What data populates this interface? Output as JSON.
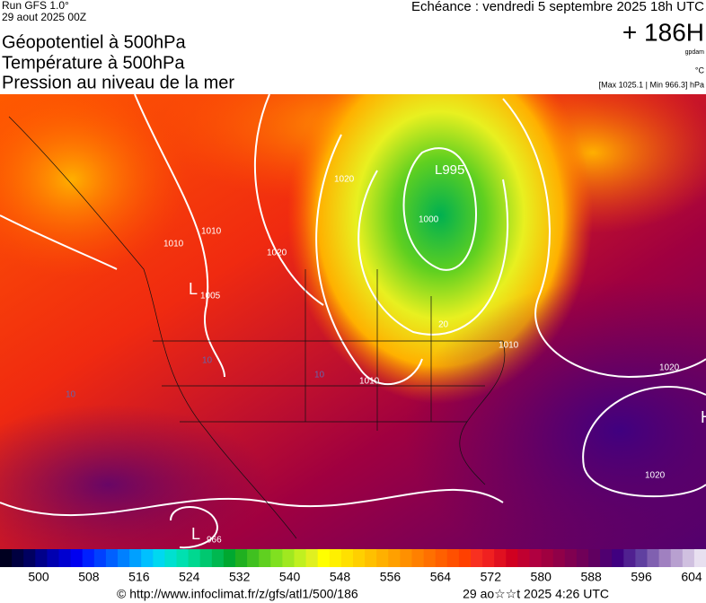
{
  "header": {
    "run": "Run GFS 1.0°",
    "run_date": "29 aout 2025 00Z",
    "valid": "Echéance : vendredi 5 septembre 2025 18h UTC",
    "title_lines": [
      "Géopotentiel à 500hPa",
      "Température à 500hPa",
      "Pression au niveau de la mer"
    ],
    "lead": "+ 186H",
    "unit_geo": "gpdam",
    "unit_temp": "°C",
    "pressure_range": "[Max 1025.1 | Min 966.3] hPa"
  },
  "map": {
    "labels": [
      "L995",
      "1000",
      "1005",
      "L",
      "1010",
      "1010",
      "1010",
      "1020",
      "1020",
      "1020",
      "1020",
      "966",
      "L",
      "H",
      "10",
      "10",
      "10",
      "20",
      "1010"
    ]
  },
  "colorbar": {
    "labels": [
      500,
      508,
      516,
      524,
      532,
      540,
      548,
      556,
      564,
      572,
      580,
      588,
      596,
      604
    ],
    "colors": [
      "#000020",
      "#000040",
      "#000060",
      "#00008a",
      "#0000b0",
      "#0000d0",
      "#0000f0",
      "#0020ff",
      "#0040ff",
      "#0060ff",
      "#0080ff",
      "#00a0ff",
      "#00c0ff",
      "#00d8f0",
      "#00e0d0",
      "#00e0b0",
      "#00d890",
      "#00c870",
      "#00b850",
      "#00a830",
      "#20b020",
      "#40c020",
      "#60d020",
      "#80e020",
      "#a0e820",
      "#c0f020",
      "#e0f020",
      "#ffff00",
      "#fff000",
      "#ffe000",
      "#ffd000",
      "#ffc000",
      "#ffb000",
      "#ffa000",
      "#ff9000",
      "#ff8000",
      "#ff7000",
      "#ff6000",
      "#ff5000",
      "#ff4000",
      "#f83020",
      "#f02020",
      "#e01020",
      "#d00020",
      "#c00030",
      "#b00040",
      "#a00040",
      "#900048",
      "#800050",
      "#700058",
      "#600060",
      "#500070",
      "#400080",
      "#502090",
      "#6040a0",
      "#8060b0",
      "#a080c0",
      "#b8a0d0",
      "#d0c0e0",
      "#e8e0f0"
    ]
  },
  "footer": {
    "url": "© http://www.infoclimat.fr/z/gfs/atl1/500/186",
    "stamp": "29 ao☆☆t 2025  4:26 UTC"
  }
}
